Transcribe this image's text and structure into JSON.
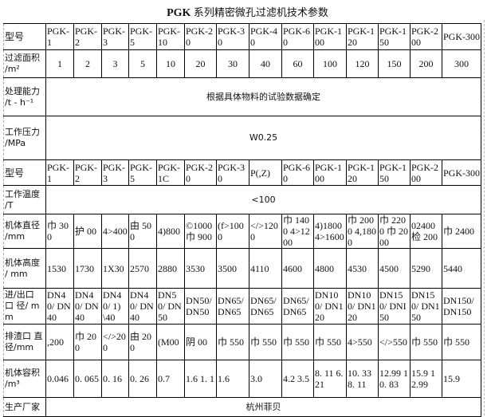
{
  "title": {
    "prefix": "PGK",
    "text": "系列精密微孔过滤机技术参数"
  },
  "rows": [
    {
      "label": "型号",
      "header": true,
      "values": [
        "PGK-1",
        "PGK-2",
        "PGK-3",
        "PGK-5",
        "PGK-10",
        "PGK-20",
        "PGK-30",
        "PGK-40",
        "PGK-60",
        "PGK-100",
        "PGK-120",
        "PGK-150",
        "PGK-200",
        "PGK-300"
      ]
    },
    {
      "label": "过滤面积 /m²",
      "values": [
        "1",
        "2",
        "3",
        "5",
        "10",
        "20",
        "30",
        "40",
        "60",
        "100",
        "120",
        "150",
        "200",
        "300"
      ]
    },
    {
      "label": "处理能力 /t - h⁻¹",
      "span": "根据具体物料的试验数据确定"
    },
    {
      "label": "工作压力 /MPa",
      "span": "W0.25"
    },
    {
      "label": "型号",
      "header": true,
      "values": [
        "PGK-1",
        "PGK-2",
        "PGK-3",
        "PGK-5",
        "PGK-1C",
        "PGK-20",
        "PGK-30",
        "P(,Z)",
        "PGK-60",
        "PGK-100",
        "PGK-120",
        "PGK-150",
        "PGK-200",
        "PGK-300"
      ]
    },
    {
      "label": "工作温度 /T",
      "span": "<100"
    },
    {
      "label": "机体直径 /mm",
      "values": [
        "巾 300",
        "护 00",
        "4>400",
        "由 500",
        "4)800",
        "©1000 巾 900",
        "(f>1000",
        "</>1200",
        "巾 1400 4>1200",
        "4)1800 4>1600",
        "巾 2000 4,1800",
        "巾 2200 巾 2000",
        "02400 检 200",
        "巾 2400"
      ]
    },
    {
      "label": "机体高度 / mm",
      "values": [
        "1530",
        "1730",
        "1X30",
        "2570",
        "2880",
        "3530",
        "3500",
        "4110",
        "4600",
        "4800",
        "4530",
        "4500",
        "5290",
        "5440"
      ]
    },
    {
      "label": "进/出口 口 径/ mm",
      "values": [
        "DN40/ DN40",
        "DN40/ DN40",
        "DN40/ 1)\\40",
        "DN40/ DN40",
        "DN50/ DN50",
        "DN50/ DN50",
        "DN65/ DN65",
        "DN65/ DN65",
        "DN65/ DN65",
        "DN100/ DN120",
        "DN100/ DN120",
        "DN150/ DNI50",
        "DN150/ DN150",
        "DN150/ DN150"
      ]
    },
    {
      "label": "排渣口 直 径/mm",
      "values": [
        ",200",
        "巾 200",
        "</>200",
        "由 200",
        "(M00",
        "阴 00",
        "巾 550",
        "巾 550",
        "巾 550",
        "巾 550",
        "4>550",
        "</>550",
        "巾 550",
        "巾 550"
      ]
    },
    {
      "label": "机体容积 /m³",
      "values": [
        "0.046",
        "0. 065",
        "0. 16",
        "0. 26",
        "0.7",
        "1.6 1. 1",
        "1.6",
        "3.0",
        "4.2 3.5",
        "8. 11 6.21",
        "10. 33 8. 11",
        "12.99 10. 83",
        "15.9 12.99",
        "15.9"
      ]
    },
    {
      "label": "生产厂家",
      "span": "杭州菲贝"
    }
  ]
}
